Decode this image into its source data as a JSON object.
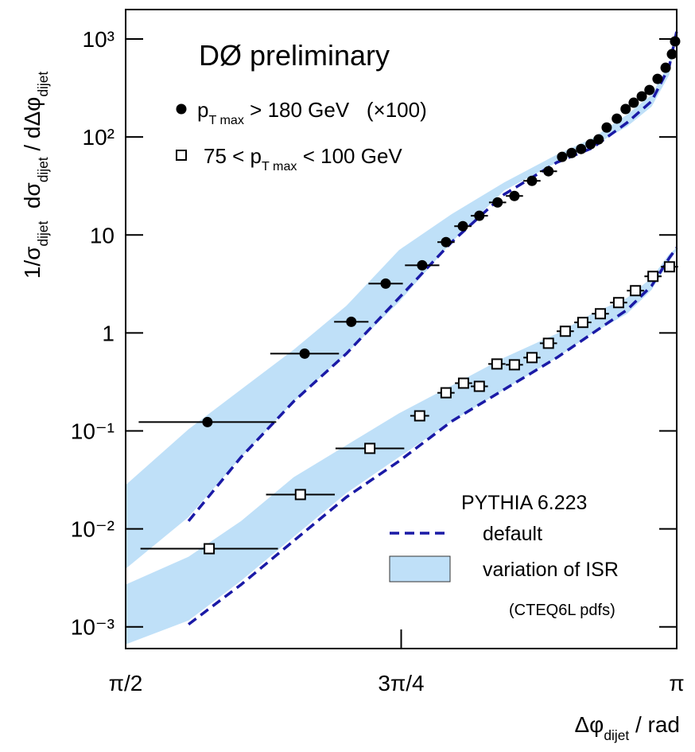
{
  "chart_data": {
    "type": "scatter",
    "title": "DØ preliminary",
    "x_label": [
      {
        "text": "Δφ"
      },
      {
        "text": "dijet",
        "sub": true
      },
      {
        "text": " / rad"
      }
    ],
    "y_label": [
      {
        "text": "1/σ"
      },
      {
        "text": "dijet",
        "sub": true
      },
      {
        "text": "  dσ"
      },
      {
        "text": "dijet",
        "sub": true
      },
      {
        "text": " / dΔφ"
      },
      {
        "text": "dijet",
        "sub": true
      }
    ],
    "xlim": [
      1.5708,
      3.1416
    ],
    "xticks": [
      {
        "value": 1.5708,
        "label": "π/2"
      },
      {
        "value": 2.3562,
        "label": "3π/4"
      },
      {
        "value": 3.1416,
        "label": "π"
      }
    ],
    "ylim": [
      0.0006,
      2000
    ],
    "log_y": true,
    "yticks": [
      {
        "value": 0.001,
        "label": "10⁻³"
      },
      {
        "value": 0.01,
        "label": "10⁻²"
      },
      {
        "value": 0.1,
        "label": "10⁻¹"
      },
      1,
      10,
      {
        "value": 100,
        "label": "10²"
      },
      {
        "value": 1000,
        "label": "10³"
      }
    ],
    "series": [
      {
        "label": [
          {
            "text": "p"
          },
          {
            "text": "T max",
            "sub": true
          },
          {
            "text": " > 180 GeV   (×100)"
          }
        ],
        "marker": "circle",
        "color": "#000000",
        "x": [
          1.804,
          2.081,
          2.214,
          2.312,
          2.416,
          2.484,
          2.532,
          2.579,
          2.631,
          2.679,
          2.729,
          2.776,
          2.815,
          2.842,
          2.869,
          2.896,
          2.919,
          2.942,
          2.971,
          2.996,
          3.019,
          3.042,
          3.064,
          3.087,
          3.11,
          3.128,
          3.137
        ],
        "values": [
          0.123,
          0.615,
          1.3,
          3.19,
          4.9,
          8.45,
          12.3,
          15.7,
          21.5,
          25.0,
          35.7,
          44.7,
          62.7,
          68.7,
          75.5,
          84.5,
          94.6,
          125,
          154,
          193,
          224,
          260,
          302,
          392,
          509,
          701,
          946
        ],
        "xerr": [
          0.196,
          0.098,
          0.049,
          0.049,
          0.049,
          0.0245,
          0.0245,
          0.0245,
          0.0245,
          0.0245,
          0.0245,
          0.0245,
          0.0123,
          0.0123,
          0.0123,
          0.0123,
          0.0123,
          0.0123,
          0.0123,
          0.0123,
          0.0123,
          0.0123,
          0.0123,
          0.0123,
          0.0123,
          0.0123,
          0.0123
        ]
      },
      {
        "label": [
          {
            "text": "75 < p"
          },
          {
            "text": "T max",
            "sub": true
          },
          {
            "text": " < 100 GeV"
          }
        ],
        "marker": "square",
        "color": "#000000",
        "x": [
          1.809,
          2.069,
          2.267,
          2.409,
          2.484,
          2.534,
          2.579,
          2.629,
          2.679,
          2.729,
          2.776,
          2.824,
          2.874,
          2.924,
          2.976,
          3.024,
          3.074,
          3.121
        ],
        "values": [
          0.00627,
          0.0224,
          0.0663,
          0.1425,
          0.245,
          0.307,
          0.285,
          0.482,
          0.473,
          0.56,
          0.784,
          1.04,
          1.28,
          1.57,
          2.04,
          2.7,
          3.78,
          4.73
        ],
        "xerr": [
          0.196,
          0.098,
          0.098,
          0.027,
          0.0245,
          0.0245,
          0.0245,
          0.0245,
          0.0245,
          0.0245,
          0.0245,
          0.0245,
          0.0245,
          0.0245,
          0.0245,
          0.0245,
          0.0245,
          0.0245
        ]
      }
    ],
    "model": {
      "title": "PYTHIA 6.223",
      "line_name": "default",
      "line_color": "#1a1aa6",
      "band_name": "variation of ISR",
      "band_color": "#bfe0f8",
      "note": "(CTEQ6L pdfs)",
      "x": [
        1.5708,
        1.75,
        1.9,
        2.05,
        2.2,
        2.35,
        2.5,
        2.65,
        2.8,
        2.9,
        3.0,
        3.07,
        3.12,
        3.1416
      ],
      "curves": [
        {
          "upper": [
            0.028,
            0.104,
            0.265,
            0.675,
            1.89,
            7.02,
            16.3,
            34.4,
            66.2,
            96.4,
            169,
            270,
            570,
            1250
          ],
          "lower": [
            0.00392,
            0.0132,
            0.054,
            0.2,
            0.615,
            2.07,
            8.45,
            28.5,
            55.0,
            79.8,
            128,
            204,
            431,
            1205
          ],
          "default": [
            null,
            0.012,
            0.054,
            0.2,
            0.615,
            2.28,
            8.45,
            26.0,
            55.0,
            76.9,
            140,
            232,
            519,
            1205
          ]
        },
        {
          "upper": [
            0.0027,
            0.00519,
            0.012,
            0.0337,
            0.0714,
            0.151,
            0.29,
            0.56,
            0.982,
            1.57,
            2.28,
            3.64,
            6.38,
            7.41
          ],
          "lower": [
            0.000662,
            0.00116,
            0.00296,
            0.0083,
            0.0232,
            0.054,
            0.125,
            0.265,
            0.56,
            0.982,
            1.57,
            2.75,
            5.3,
            7.02
          ],
          "default": [
            null,
            0.00106,
            0.0027,
            0.00755,
            0.0211,
            0.0491,
            0.125,
            0.265,
            0.56,
            0.982,
            1.72,
            3.02,
            5.81,
            7.41
          ]
        }
      ]
    }
  }
}
